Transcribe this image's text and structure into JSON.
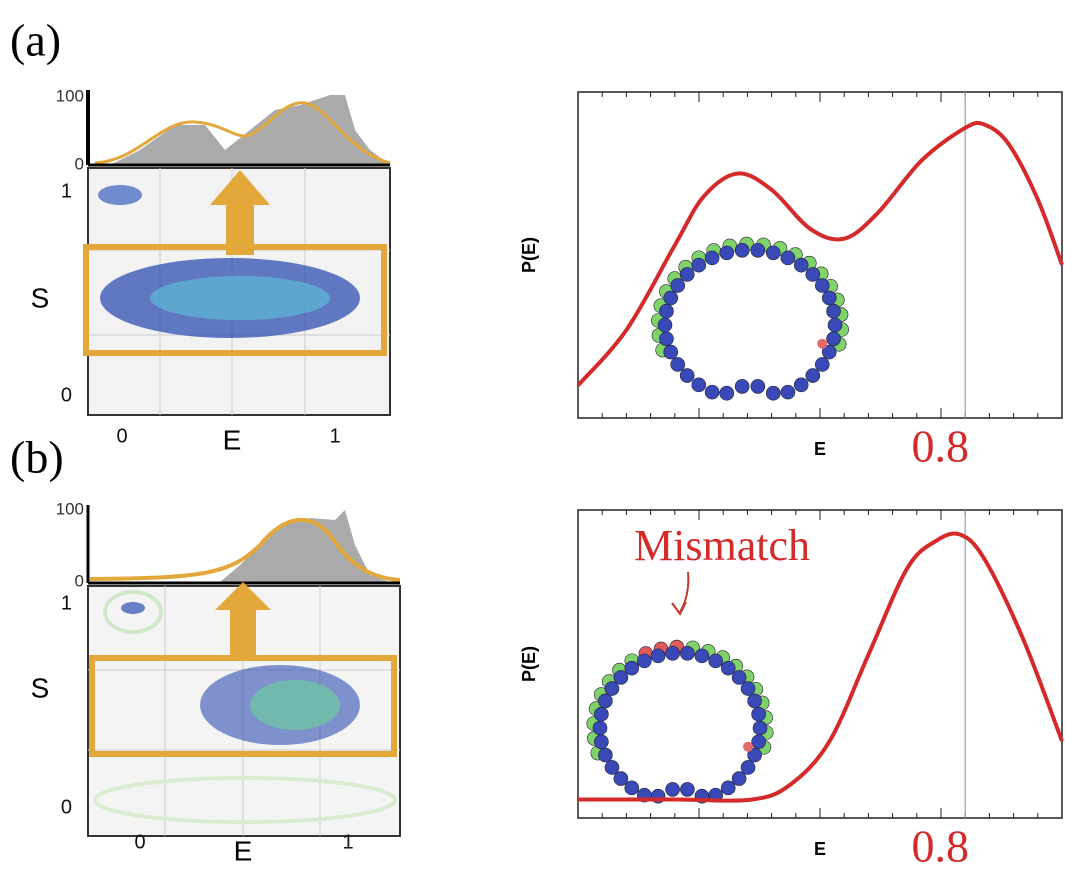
{
  "panel_labels": [
    "(a)",
    "(b)"
  ],
  "density_plots": [
    {
      "hist_ticks": [
        {
          "value": 100,
          "label": "100"
        },
        0
      ],
      "s_ticks": [
        1,
        0
      ],
      "e_ticks": [
        0,
        1
      ],
      "ylabel": "S",
      "xlabel": "E"
    },
    {
      "hist_ticks": [
        {
          "value": 100,
          "label": "100"
        },
        0
      ],
      "s_ticks": [
        1,
        0
      ],
      "e_ticks": [
        0,
        1
      ],
      "ylabel": "S",
      "xlabel": "E"
    }
  ],
  "chart_data": [
    {
      "type": "line",
      "xlabel": "E",
      "ylabel": "P(E)",
      "xlim": [
        0,
        1
      ],
      "ylim": [
        0,
        1
      ],
      "color": "#d42a2a",
      "x": [
        0,
        0.1,
        0.2,
        0.26,
        0.33,
        0.4,
        0.48,
        0.55,
        0.62,
        0.71,
        0.8,
        0.84,
        0.89,
        0.95,
        1.0
      ],
      "values": [
        0.1,
        0.27,
        0.53,
        0.68,
        0.75,
        0.7,
        0.58,
        0.55,
        0.63,
        0.79,
        0.89,
        0.9,
        0.84,
        0.67,
        0.47
      ],
      "annotation": {
        "text": "0.8",
        "x": 0.8
      }
    },
    {
      "type": "line",
      "xlabel": "E",
      "ylabel": "P(E)",
      "xlim": [
        0,
        1
      ],
      "ylim": [
        0,
        1
      ],
      "color": "#d42a2a",
      "x": [
        0,
        0.2,
        0.36,
        0.44,
        0.52,
        0.6,
        0.68,
        0.74,
        0.79,
        0.84,
        0.92,
        1.0
      ],
      "values": [
        0.06,
        0.06,
        0.06,
        0.11,
        0.25,
        0.53,
        0.81,
        0.9,
        0.92,
        0.84,
        0.58,
        0.25
      ],
      "annotation": {
        "text": "0.8",
        "x": 0.8
      },
      "label": "Mismatch"
    }
  ]
}
